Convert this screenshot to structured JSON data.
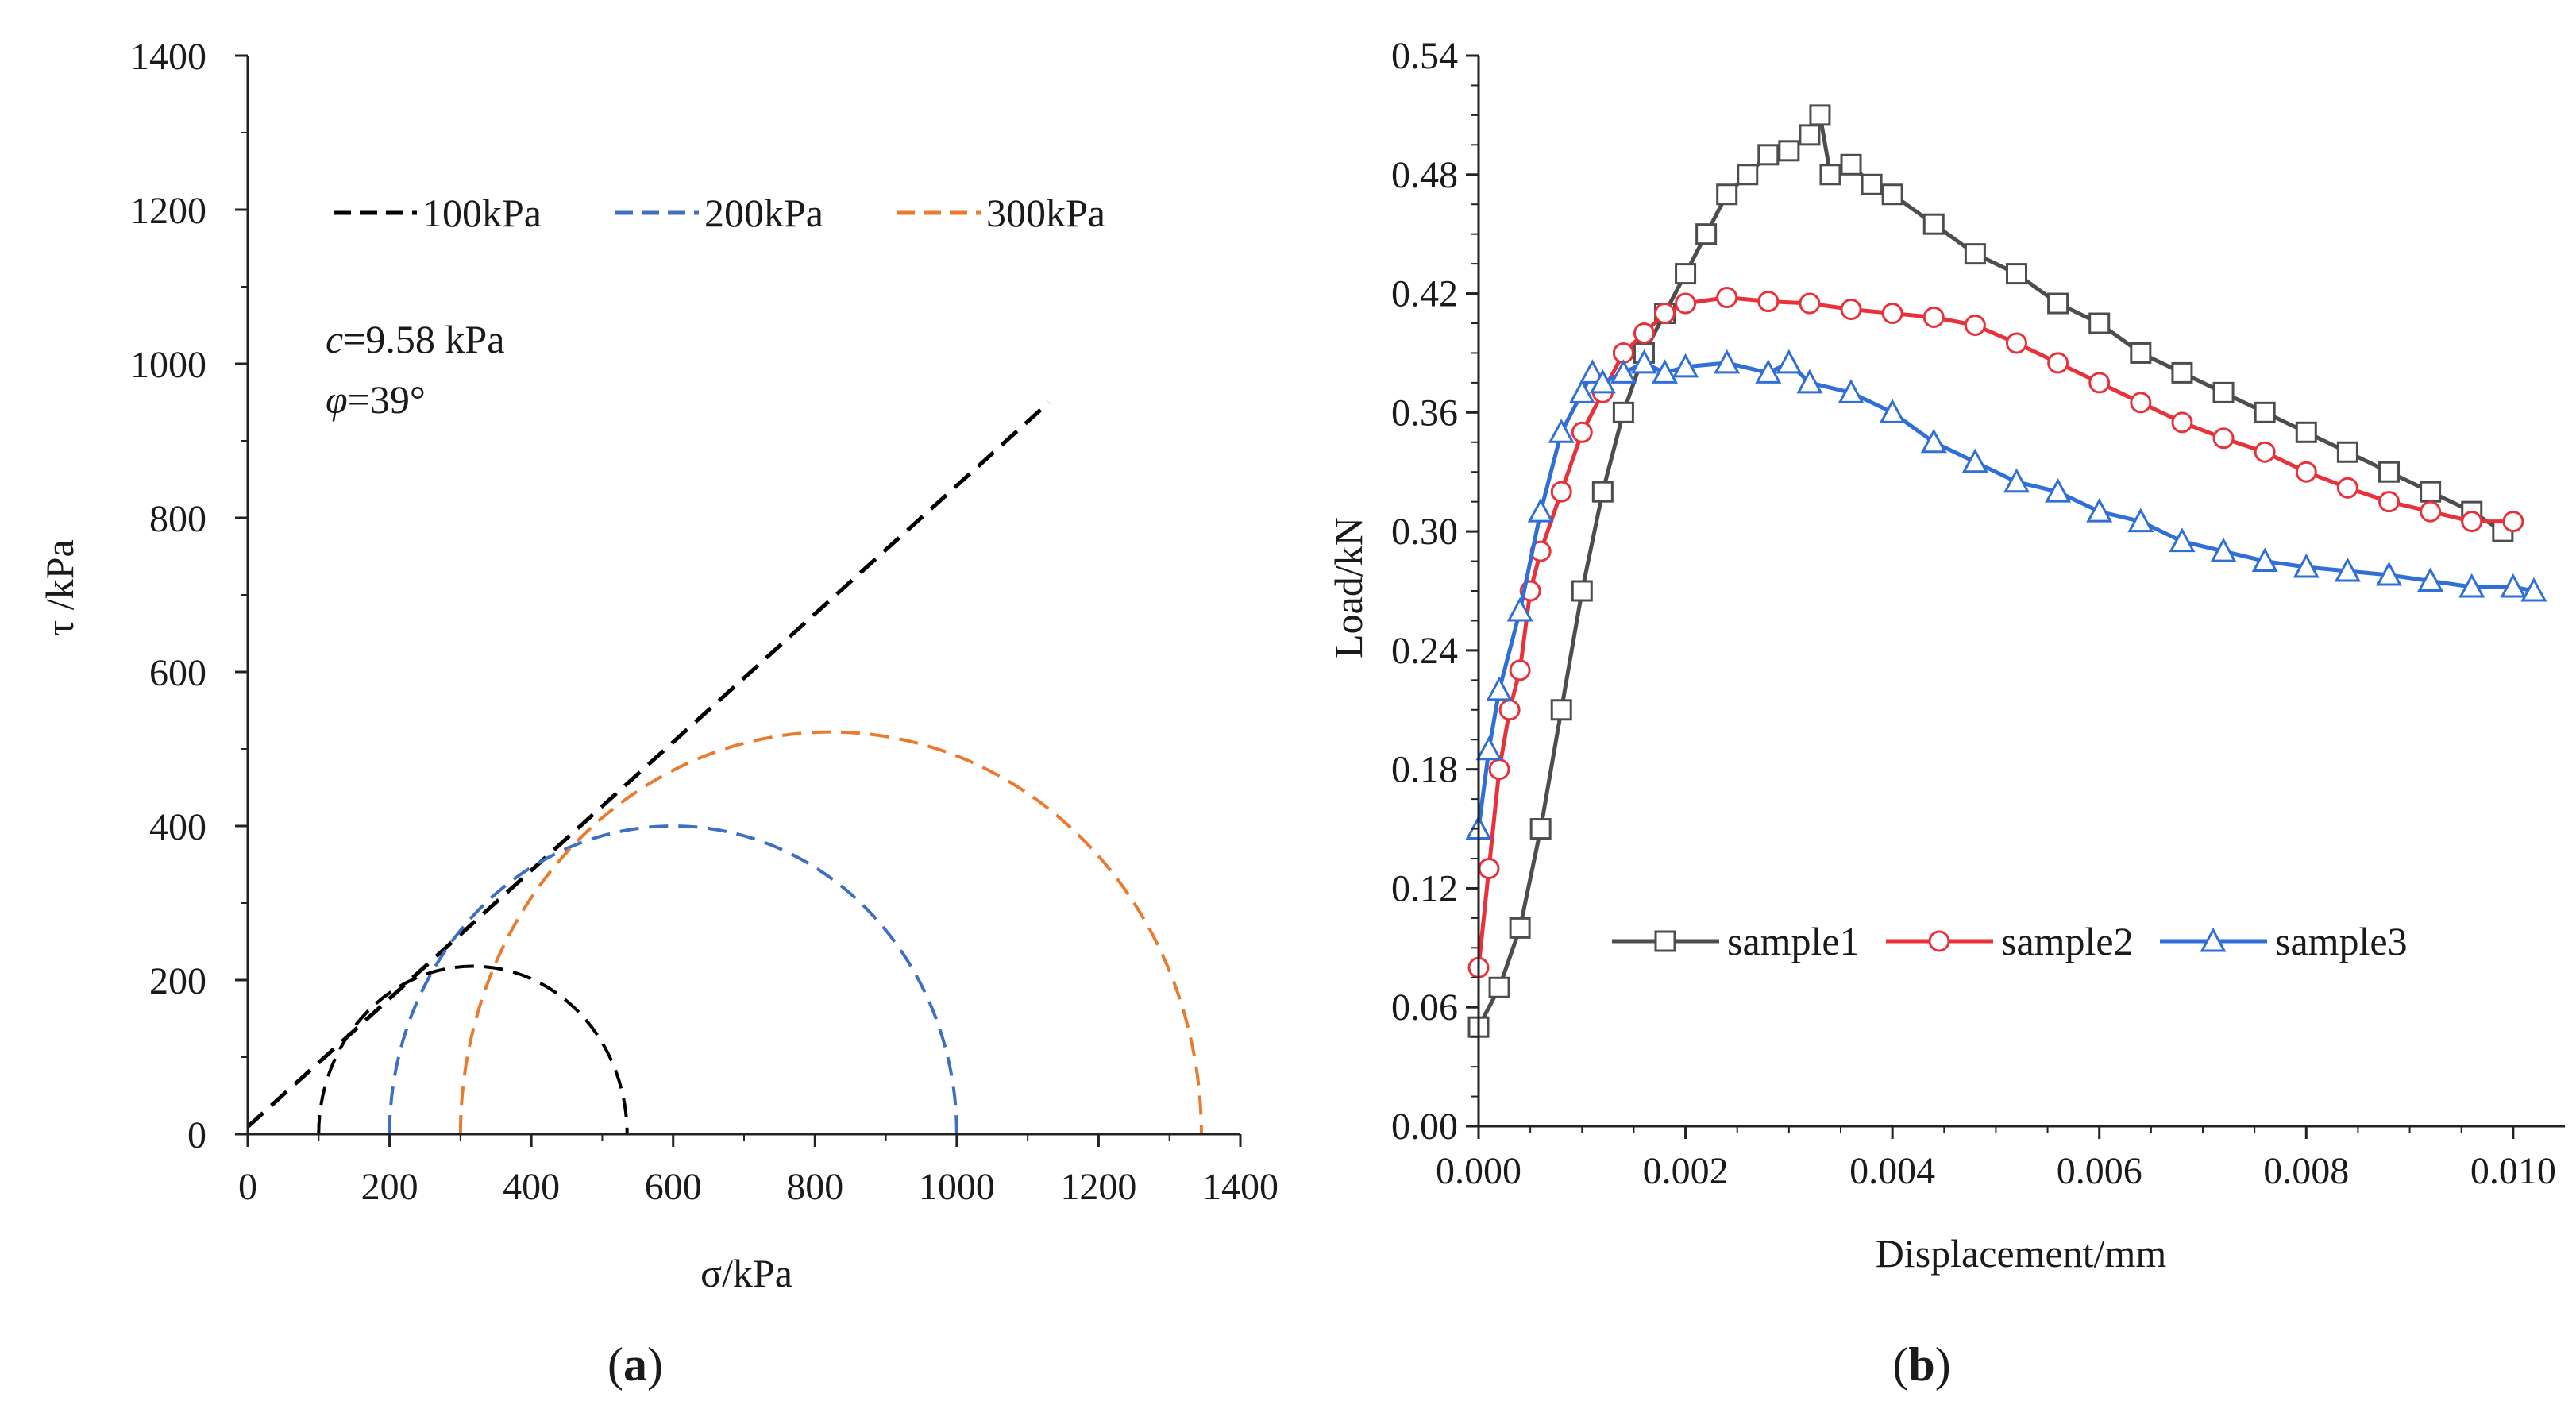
{
  "chart_data": [
    {
      "type": "line",
      "panel_label": {
        "open": "(",
        "letter": "a",
        "close": ")"
      },
      "xlabel": "σ/kPa",
      "ylabel": "τ /kPa",
      "xlim": [
        0,
        1400
      ],
      "ylim": [
        0,
        1400
      ],
      "x_ticks": [
        0,
        200,
        400,
        600,
        800,
        1000,
        1200,
        1400
      ],
      "y_ticks": [
        0,
        200,
        400,
        600,
        800,
        1000,
        1200,
        1400
      ],
      "legend": [
        "100kPa",
        "200kPa",
        "300kPa"
      ],
      "annotation_c": {
        "symbol": "c",
        "rest": "=9.58 kPa"
      },
      "annotation_phi": {
        "symbol": "φ",
        "rest": "=39°"
      },
      "failure_envelope": {
        "x": [
          0,
          1130
        ],
        "y": [
          9.58,
          950
        ],
        "color": "#000000"
      },
      "circles": [
        {
          "name": "100kPa",
          "sigma3": 100,
          "sigma1": 535,
          "center": 317,
          "radius": 218,
          "color": "#000000"
        },
        {
          "name": "200kPa",
          "sigma3": 200,
          "sigma1": 1000,
          "center": 600,
          "radius": 400,
          "color": "#3d6fc2"
        },
        {
          "name": "300kPa",
          "sigma3": 300,
          "sigma1": 1345,
          "center": 822,
          "radius": 522,
          "color": "#ea7a2e"
        }
      ]
    },
    {
      "type": "line",
      "panel_label": {
        "open": "(",
        "letter": "b",
        "close": ")"
      },
      "xlabel": "Displacement/mm",
      "ylabel": "Load/kN",
      "xlim": [
        0,
        0.0105
      ],
      "ylim": [
        0,
        0.54
      ],
      "x_ticks": [
        "0.000",
        "0.002",
        "0.004",
        "0.006",
        "0.008",
        "0.010"
      ],
      "y_ticks": [
        "0.00",
        "0.06",
        "0.12",
        "0.18",
        "0.24",
        "0.30",
        "0.36",
        "0.42",
        "0.48",
        "0.54"
      ],
      "series": [
        {
          "name": "sample1",
          "color": "#4d4d4d",
          "marker": "square",
          "x": [
            0.0,
            0.0002,
            0.0004,
            0.0006,
            0.0008,
            0.001,
            0.0012,
            0.0014,
            0.0016,
            0.0018,
            0.002,
            0.0022,
            0.0024,
            0.0026,
            0.0028,
            0.003,
            0.0032,
            0.0033,
            0.0034,
            0.0036,
            0.0038,
            0.004,
            0.0044,
            0.0048,
            0.0052,
            0.0056,
            0.006,
            0.0064,
            0.0068,
            0.0072,
            0.0076,
            0.008,
            0.0084,
            0.0088,
            0.0092,
            0.0096,
            0.0099
          ],
          "y": [
            0.05,
            0.07,
            0.1,
            0.15,
            0.21,
            0.27,
            0.32,
            0.36,
            0.39,
            0.41,
            0.43,
            0.45,
            0.47,
            0.48,
            0.49,
            0.492,
            0.5,
            0.51,
            0.48,
            0.485,
            0.475,
            0.47,
            0.455,
            0.44,
            0.43,
            0.415,
            0.405,
            0.39,
            0.38,
            0.37,
            0.36,
            0.35,
            0.34,
            0.33,
            0.32,
            0.31,
            0.3
          ]
        },
        {
          "name": "sample2",
          "color": "#e8323a",
          "marker": "circle",
          "x": [
            0.0,
            0.0001,
            0.0002,
            0.0003,
            0.0004,
            0.0005,
            0.0006,
            0.0008,
            0.001,
            0.0012,
            0.0014,
            0.0016,
            0.0018,
            0.002,
            0.0024,
            0.0028,
            0.0032,
            0.0036,
            0.004,
            0.0044,
            0.0048,
            0.0052,
            0.0056,
            0.006,
            0.0064,
            0.0068,
            0.0072,
            0.0076,
            0.008,
            0.0084,
            0.0088,
            0.0092,
            0.0096,
            0.01
          ],
          "y": [
            0.08,
            0.13,
            0.18,
            0.21,
            0.23,
            0.27,
            0.29,
            0.32,
            0.35,
            0.37,
            0.39,
            0.4,
            0.41,
            0.415,
            0.418,
            0.416,
            0.415,
            0.412,
            0.41,
            0.408,
            0.404,
            0.395,
            0.385,
            0.375,
            0.365,
            0.355,
            0.347,
            0.34,
            0.33,
            0.322,
            0.315,
            0.31,
            0.305,
            0.305
          ]
        },
        {
          "name": "sample3",
          "color": "#2f6fd6",
          "marker": "triangle",
          "x": [
            0.0,
            0.0001,
            0.0002,
            0.0004,
            0.0006,
            0.0008,
            0.001,
            0.0011,
            0.0012,
            0.0014,
            0.0016,
            0.0018,
            0.002,
            0.0024,
            0.0028,
            0.003,
            0.0032,
            0.0036,
            0.004,
            0.0044,
            0.0048,
            0.0052,
            0.0056,
            0.006,
            0.0064,
            0.0068,
            0.0072,
            0.0076,
            0.008,
            0.0084,
            0.0088,
            0.0092,
            0.0096,
            0.01,
            0.0102
          ],
          "y": [
            0.15,
            0.19,
            0.22,
            0.26,
            0.31,
            0.35,
            0.37,
            0.38,
            0.375,
            0.38,
            0.385,
            0.38,
            0.383,
            0.385,
            0.38,
            0.385,
            0.375,
            0.37,
            0.36,
            0.345,
            0.335,
            0.325,
            0.32,
            0.31,
            0.305,
            0.295,
            0.29,
            0.285,
            0.282,
            0.28,
            0.278,
            0.275,
            0.272,
            0.272,
            0.27
          ]
        }
      ]
    }
  ]
}
